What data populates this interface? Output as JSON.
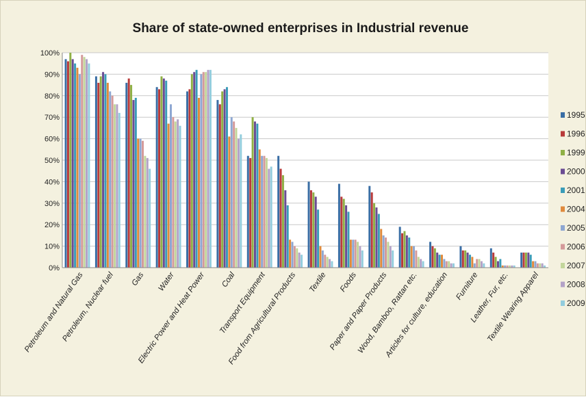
{
  "chart_data": {
    "type": "bar",
    "title": "Share of state-owned enterprises in Industrial revenue",
    "xlabel": "",
    "ylabel": "",
    "ylim": [
      0,
      100
    ],
    "yticks": [
      "0%",
      "10%",
      "20%",
      "30%",
      "40%",
      "50%",
      "60%",
      "70%",
      "80%",
      "90%",
      "100%"
    ],
    "grid": true,
    "legend_position": "right",
    "categories": [
      "Petroleum and Natural Gas",
      "Petroleum, Nuclear fuel",
      "Gas",
      "Water",
      "Electric Power and Heat Power",
      "Coal",
      "Transport Equipment",
      "Food from Agricultural Products",
      "Textile",
      "Foods",
      "Paper and Paper Products",
      "Wood, Bamboo, Rattan etc.",
      "Articles for culture, education",
      "Furniture",
      "Leather, Fur, etc.",
      "Textile Wearing Apparel"
    ],
    "series": [
      {
        "name": "1995",
        "color": "#3a6ea5",
        "values": [
          97,
          89,
          86,
          84,
          82,
          78,
          52,
          52,
          40,
          39,
          38,
          19,
          12,
          10,
          9,
          7
        ]
      },
      {
        "name": "1996",
        "color": "#b83a3a",
        "values": [
          96,
          86,
          88,
          83,
          83,
          76,
          51,
          46,
          36,
          33,
          35,
          16,
          10,
          8,
          7,
          7
        ]
      },
      {
        "name": "1999",
        "color": "#8fb045",
        "values": [
          100,
          89,
          85,
          89,
          90,
          82,
          70,
          43,
          35,
          32,
          30,
          17,
          9,
          8,
          5,
          7
        ]
      },
      {
        "name": "2000",
        "color": "#6a4c93",
        "values": [
          97,
          91,
          78,
          88,
          91,
          83,
          68,
          36,
          33,
          29,
          28,
          15,
          7,
          7,
          3,
          7
        ]
      },
      {
        "name": "2001",
        "color": "#3a9cb8",
        "values": [
          95,
          90,
          79,
          87,
          92,
          84,
          67,
          29,
          27,
          26,
          25,
          14,
          6,
          6,
          4,
          6
        ]
      },
      {
        "name": "2004",
        "color": "#e08a3c",
        "values": [
          93,
          86,
          60,
          67,
          79,
          61,
          55,
          13,
          10,
          13,
          18,
          10,
          6,
          5,
          1,
          3
        ]
      },
      {
        "name": "2005",
        "color": "#8ea7d2",
        "values": [
          90,
          82,
          60,
          76,
          90,
          70,
          52,
          12,
          8,
          13,
          15,
          10,
          4,
          2,
          1,
          3
        ]
      },
      {
        "name": "2006",
        "color": "#d49a9a",
        "values": [
          99,
          80,
          59,
          70,
          91,
          68,
          52,
          10,
          6,
          13,
          14,
          8,
          3,
          4,
          1,
          2
        ]
      },
      {
        "name": "2007",
        "color": "#c3d69b",
        "values": [
          98,
          76,
          52,
          68,
          91,
          65,
          51,
          9,
          5,
          12,
          12,
          5,
          3,
          4,
          1,
          2
        ]
      },
      {
        "name": "2008",
        "color": "#b3a2c7",
        "values": [
          97,
          76,
          51,
          69,
          92,
          60,
          46,
          7,
          4,
          10,
          10,
          4,
          2,
          3,
          1,
          2
        ]
      },
      {
        "name": "2009",
        "color": "#93cddd",
        "values": [
          95,
          72,
          46,
          66,
          92,
          62,
          47,
          6,
          3,
          8,
          8,
          3,
          2,
          2,
          1,
          1
        ]
      }
    ]
  }
}
